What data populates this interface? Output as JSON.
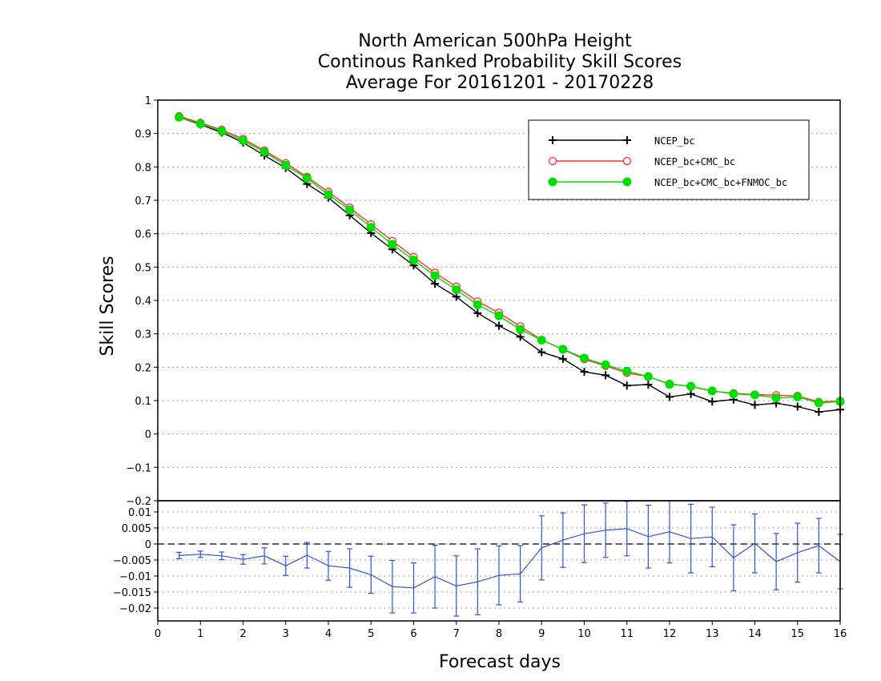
{
  "chart_data": [
    {
      "type": "line",
      "title": [
        "North American 500hPa Height",
        "Continous Ranked Probability Skill Scores",
        "Average For 20161201 - 20170228"
      ],
      "xlabel": "Forecast days",
      "ylabel": "Skill Scores",
      "xlim": [
        0,
        16
      ],
      "ylim": [
        -0.2,
        1
      ],
      "x_ticks": [
        "0",
        "1",
        "2",
        "3",
        "4",
        "5",
        "6",
        "7",
        "8",
        "9",
        "10",
        "11",
        "12",
        "13",
        "14",
        "15",
        "16"
      ],
      "y_ticks": [
        "1",
        "0.9",
        "0.8",
        "0.7",
        "0.6",
        "0.5",
        "0.4",
        "0.3",
        "0.2",
        "0.1",
        "0",
        "−0.1",
        "−0.2"
      ],
      "grid": true,
      "legend_position": "top-right",
      "x": [
        0.5,
        1,
        1.5,
        2,
        2.5,
        3,
        3.5,
        4,
        4.5,
        5,
        5.5,
        6,
        6.5,
        7,
        7.5,
        8,
        8.5,
        9,
        9.5,
        10,
        10.5,
        11,
        11.5,
        12,
        12.5,
        13,
        13.5,
        14,
        14.5,
        15,
        15.5,
        16
      ],
      "series": [
        {
          "name": "NCEP_bc",
          "color": "#000000",
          "marker": "plus",
          "values": [
            0.949,
            0.927,
            0.903,
            0.873,
            0.834,
            0.797,
            0.749,
            0.708,
            0.655,
            0.602,
            0.553,
            0.505,
            0.45,
            0.411,
            0.362,
            0.324,
            0.291,
            0.245,
            0.225,
            0.186,
            0.176,
            0.145,
            0.148,
            0.111,
            0.12,
            0.097,
            0.103,
            0.087,
            0.092,
            0.082,
            0.066,
            0.073
          ]
        },
        {
          "name": "NCEP_bc+CMC_bc",
          "color": "#ff3030",
          "marker": "open-circle",
          "values": [
            0.952,
            0.932,
            0.911,
            0.884,
            0.849,
            0.811,
            0.77,
            0.725,
            0.678,
            0.628,
            0.578,
            0.53,
            0.483,
            0.441,
            0.397,
            0.363,
            0.322,
            0.282,
            0.253,
            0.224,
            0.204,
            0.183,
            0.172,
            0.15,
            0.142,
            0.128,
            0.122,
            0.118,
            0.116,
            0.114,
            0.096,
            0.099
          ]
        },
        {
          "name": "NCEP_bc+CMC_bc+FNMOC_bc",
          "color": "#00dd00",
          "marker": "filled-circle",
          "values": [
            0.949,
            0.929,
            0.907,
            0.879,
            0.845,
            0.805,
            0.766,
            0.717,
            0.671,
            0.619,
            0.568,
            0.521,
            0.474,
            0.432,
            0.387,
            0.354,
            0.313,
            0.281,
            0.254,
            0.227,
            0.207,
            0.188,
            0.172,
            0.149,
            0.143,
            0.129,
            0.12,
            0.117,
            0.108,
            0.111,
            0.093,
            0.097
          ]
        }
      ]
    },
    {
      "type": "line",
      "xlabel": "Forecast days",
      "xlim": [
        0,
        16
      ],
      "ylim": [
        -0.024,
        0.0135
      ],
      "x_ticks": [
        "0",
        "1",
        "2",
        "3",
        "4",
        "5",
        "6",
        "7",
        "8",
        "9",
        "10",
        "11",
        "12",
        "13",
        "14",
        "15",
        "16"
      ],
      "y_ticks": [
        "0.01",
        "0.005",
        "0",
        "−0.005",
        "−0.01",
        "−0.015",
        "−0.02"
      ],
      "y_tick_values": [
        0.01,
        0.005,
        0,
        -0.005,
        -0.01,
        -0.015,
        -0.02
      ],
      "reference_line": 0,
      "x": [
        0.5,
        1,
        1.5,
        2,
        2.5,
        3,
        3.5,
        4,
        4.5,
        5,
        5.5,
        6,
        6.5,
        7,
        7.5,
        8,
        8.5,
        9,
        9.5,
        10,
        10.5,
        11,
        11.5,
        12,
        12.5,
        13,
        13.5,
        14,
        14.5,
        15,
        15.5,
        16
      ],
      "series": [
        {
          "color": "#2f54d8",
          "values": [
            -0.0036,
            -0.0032,
            -0.0037,
            -0.0048,
            -0.0037,
            -0.0068,
            -0.0035,
            -0.0068,
            -0.0075,
            -0.0096,
            -0.0133,
            -0.0137,
            -0.0102,
            -0.0131,
            -0.0118,
            -0.0098,
            -0.0093,
            -0.0012,
            0.0012,
            0.0032,
            0.0043,
            0.0048,
            0.0023,
            0.0038,
            0.0017,
            0.0022,
            -0.0043,
            0.0002,
            -0.0055,
            -0.0027,
            -0.0005,
            -0.0055
          ],
          "error": [
            0.001,
            0.001,
            0.0012,
            0.0015,
            0.0025,
            0.003,
            0.004,
            0.0045,
            0.006,
            0.0058,
            0.0082,
            0.0078,
            0.0098,
            0.0094,
            0.0103,
            0.0092,
            0.0088,
            0.01,
            0.0085,
            0.009,
            0.0085,
            0.0085,
            0.0098,
            0.0097,
            0.0107,
            0.0093,
            0.0103,
            0.0092,
            0.0088,
            0.0092,
            0.0085,
            0.0085
          ]
        }
      ]
    }
  ]
}
